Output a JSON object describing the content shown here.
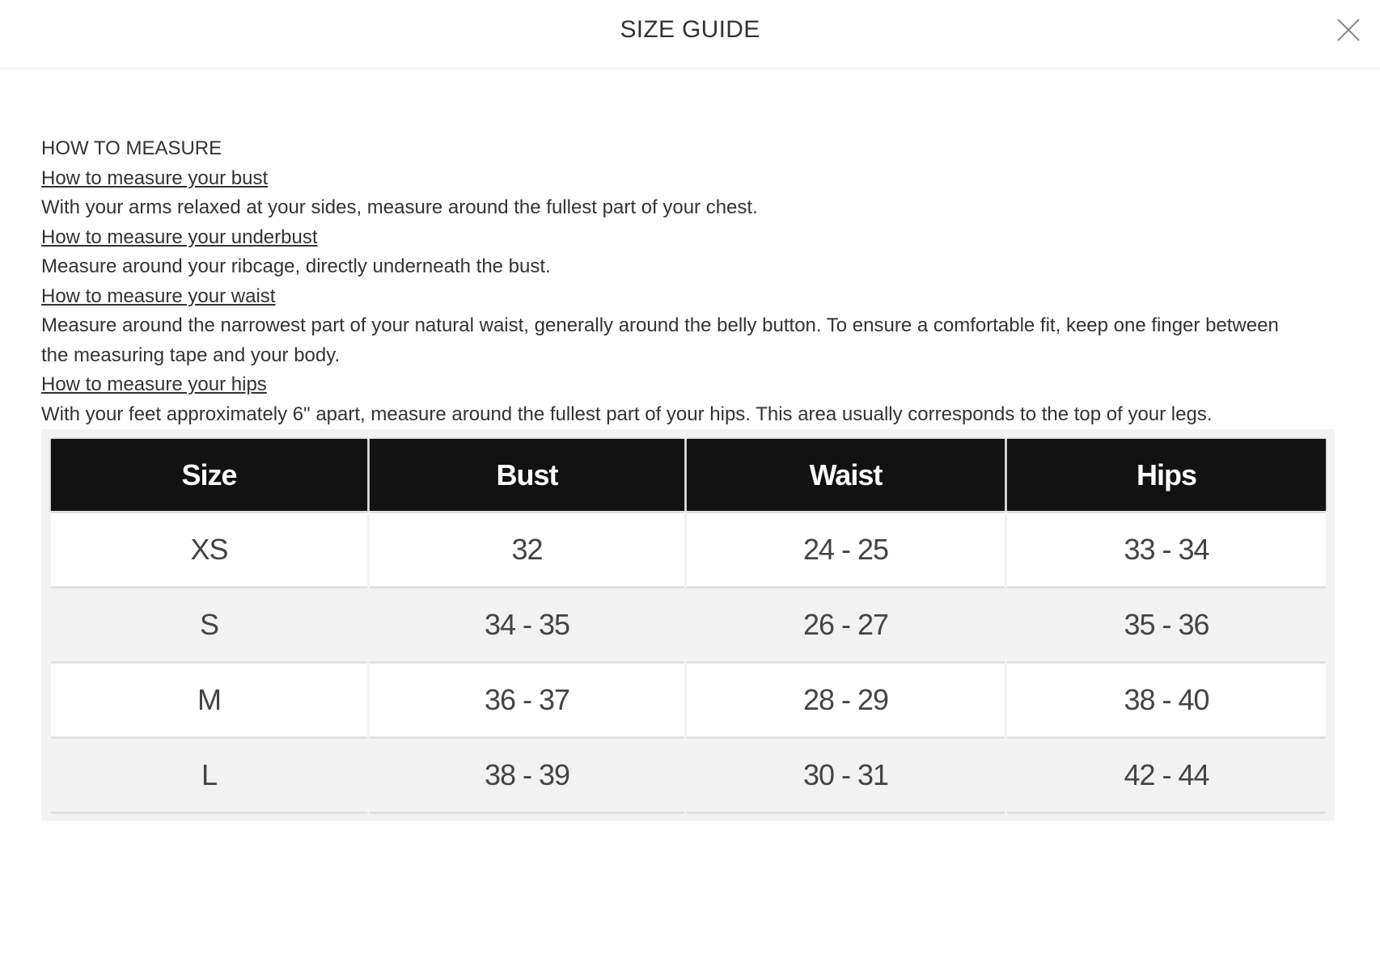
{
  "header": {
    "title": "SIZE GUIDE",
    "close_icon": "close-x-icon"
  },
  "guide": {
    "heading": "HOW TO MEASURE",
    "sections": [
      {
        "link": "How to measure your bust",
        "text": "With your arms relaxed at your sides, measure around the fullest part of your chest."
      },
      {
        "link": "How to measure your underbust",
        "text": "Measure around your ribcage, directly underneath the bust."
      },
      {
        "link": "How to measure your waist",
        "text": "Measure around the narrowest part of your natural waist, generally around the belly button. To ensure a comfortable fit, keep one finger between the measuring tape and your body."
      },
      {
        "link": "How to measure your hips",
        "text": "With your feet approximately 6\" apart, measure around the fullest part of your hips. This area usually corresponds to the top of your legs."
      }
    ]
  },
  "table": {
    "headers": [
      "Size",
      "Bust",
      "Waist",
      "Hips"
    ],
    "rows": [
      [
        "XS",
        "32",
        "24 - 25",
        "33 - 34"
      ],
      [
        "S",
        "34 - 35",
        "26 - 27",
        "35 - 36"
      ],
      [
        "M",
        "36 - 37",
        "28 - 29",
        "38 - 40"
      ],
      [
        "L",
        "38 - 39",
        "30 - 31",
        "42 - 44"
      ]
    ],
    "colors": {
      "header_bg": "#121212",
      "row_alt": "#f2f2f2"
    }
  }
}
